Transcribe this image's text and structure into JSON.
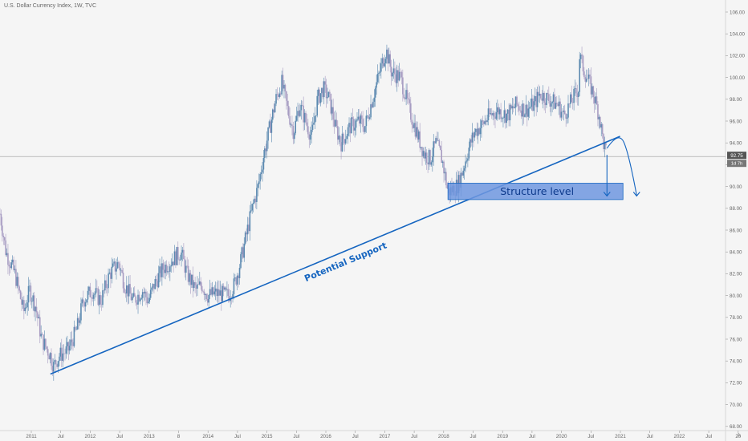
{
  "header": {
    "title": "U.S. Dollar Currency Index, 1W, TVC"
  },
  "price_tag": {
    "value": "92.75",
    "countdown": "1d 7h"
  },
  "annotations": {
    "support_label": "Potential Support",
    "structure_label": "Structure level"
  },
  "colors": {
    "background": "#f5f5f5",
    "candle_up": "#5b89b0",
    "candle_down": "#a79cc2",
    "annotation_blue": "#1565c0",
    "zone_fill": "#6e97df",
    "price_tag_bg": "#555555"
  },
  "chart_data": {
    "type": "candlestick",
    "title": "U.S. Dollar Currency Index, 1W, TVC",
    "y_ticks": [
      "106.00",
      "104.00",
      "102.00",
      "100.00",
      "98.00",
      "96.00",
      "94.00",
      "92.00",
      "90.00",
      "88.00",
      "86.00",
      "84.00",
      "82.00",
      "80.00",
      "78.00",
      "76.00",
      "74.00",
      "72.00",
      "70.00",
      "68.00"
    ],
    "x_ticks": [
      "2011",
      "Jul",
      "2012",
      "Jul",
      "2013",
      "8",
      "2014",
      "Jul",
      "2015",
      "Jul",
      "2016",
      "Jul",
      "2017",
      "Jul",
      "2018",
      "Jul",
      "2019",
      "Jul",
      "2020",
      "Jul",
      "2021",
      "Jul",
      "2022",
      "Jul",
      "20"
    ],
    "ylim": [
      67.5,
      107
    ],
    "xlim": [
      2010.45,
      2023.03
    ],
    "last_price": 92.75,
    "series": [
      {
        "style": "close-path",
        "x": [
          2010.45,
          2010.55,
          2010.7,
          2010.85,
          2010.95,
          2011.05,
          2011.15,
          2011.3,
          2011.35,
          2011.45,
          2011.6,
          2011.75,
          2011.85,
          2012.0,
          2012.15,
          2012.3,
          2012.45,
          2012.55,
          2012.7,
          2012.85,
          2012.95,
          2013.05,
          2013.2,
          2013.3,
          2013.5,
          2013.6,
          2013.75,
          2013.85,
          2013.95,
          2014.1,
          2014.3,
          2014.4,
          2014.5,
          2014.6,
          2014.7,
          2014.8,
          2014.9,
          2015.0,
          2015.1,
          2015.2,
          2015.3,
          2015.4,
          2015.5,
          2015.6,
          2015.7,
          2015.8,
          2015.9,
          2016.0,
          2016.1,
          2016.2,
          2016.35,
          2016.5,
          2016.6,
          2016.75,
          2016.9,
          2016.96,
          2017.05,
          2017.2,
          2017.35,
          2017.5,
          2017.6,
          2017.7,
          2017.8,
          2017.9,
          2018.0,
          2018.1,
          2018.17,
          2018.25,
          2018.35,
          2018.45,
          2018.55,
          2018.7,
          2018.85,
          2019.0,
          2019.15,
          2019.3,
          2019.45,
          2019.55,
          2019.7,
          2019.85,
          2019.95,
          2020.05,
          2020.2,
          2020.22,
          2020.3,
          2020.38,
          2020.45,
          2020.55,
          2020.62,
          2020.68
        ],
        "y": [
          87.5,
          84.0,
          82.0,
          78.5,
          80.5,
          79.0,
          76.0,
          74.5,
          73.5,
          74.5,
          75.0,
          77.0,
          79.5,
          80.5,
          79.5,
          82.0,
          83.0,
          81.0,
          79.5,
          80.5,
          79.5,
          81.0,
          82.5,
          83.0,
          84.0,
          82.0,
          80.5,
          81.0,
          80.0,
          80.2,
          80.0,
          81.0,
          83.0,
          85.5,
          88.0,
          90.0,
          93.0,
          95.5,
          98.0,
          99.5,
          97.0,
          95.0,
          97.5,
          96.0,
          94.5,
          98.0,
          99.0,
          98.0,
          95.5,
          94.0,
          95.5,
          96.0,
          95.5,
          98.5,
          101.5,
          102.5,
          100.5,
          100.0,
          97.0,
          94.5,
          93.0,
          92.5,
          94.0,
          92.5,
          89.5,
          89.8,
          90.2,
          91.5,
          93.5,
          95.0,
          95.5,
          96.5,
          97.0,
          96.5,
          97.5,
          97.0,
          97.5,
          98.5,
          98.0,
          97.5,
          96.5,
          97.5,
          99.0,
          102.0,
          100.5,
          99.5,
          98.5,
          96.5,
          94.0,
          92.75
        ]
      }
    ],
    "annotations": [
      {
        "type": "trendline",
        "label": "Potential Support",
        "from": [
          2011.3,
          72.8
        ],
        "to": [
          2020.9,
          94.6
        ]
      },
      {
        "type": "zone",
        "label": "Structure level",
        "x": [
          2018.0,
          2020.95
        ],
        "y": [
          88.8,
          90.3
        ]
      },
      {
        "type": "projection",
        "path": [
          [
            2020.68,
            92.9
          ],
          [
            2020.68,
            89.2
          ]
        ]
      },
      {
        "type": "projection",
        "path": [
          [
            2020.68,
            93.5
          ],
          [
            2020.88,
            95.1
          ],
          [
            2021.05,
            93.0
          ],
          [
            2021.18,
            89.2
          ]
        ]
      }
    ]
  }
}
